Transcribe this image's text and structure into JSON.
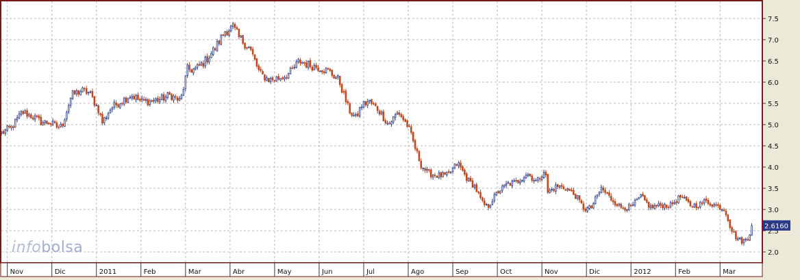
{
  "watermark": {
    "part1": "info",
    "part2": "bolsa"
  },
  "last_price_label": "2.6160",
  "colors": {
    "up": "#2b3f8c",
    "down": "#c1461b",
    "border": "#7a1818",
    "grid": "#b9b9b9",
    "tag_bg": "#2a3a86"
  },
  "chart_data": {
    "type": "candlestick",
    "title": "",
    "xlabel": "",
    "ylabel": "",
    "ylim": [
      1.85,
      7.85
    ],
    "yticks": [
      "2.0",
      "2.5",
      "3.0",
      "3.5",
      "4.0",
      "4.5",
      "5.0",
      "5.5",
      "6.0",
      "6.5",
      "7.0",
      "7.5"
    ],
    "xticks": [
      {
        "label": "Nov",
        "week": 0
      },
      {
        "label": "Dic",
        "week": 4.5
      },
      {
        "label": "2011",
        "week": 9
      },
      {
        "label": "Feb",
        "week": 13.5
      },
      {
        "label": "Mar",
        "week": 18
      },
      {
        "label": "Abr",
        "week": 22.5
      },
      {
        "label": "May",
        "week": 27
      },
      {
        "label": "Jun",
        "week": 31.5
      },
      {
        "label": "Jul",
        "week": 36
      },
      {
        "label": "Ago",
        "week": 40.5
      },
      {
        "label": "Sep",
        "week": 45
      },
      {
        "label": "Oct",
        "week": 49.5
      },
      {
        "label": "Nov",
        "week": 54
      },
      {
        "label": "Dic",
        "week": 58.5
      },
      {
        "label": "2012",
        "week": 63
      },
      {
        "label": "Feb",
        "week": 67.5
      },
      {
        "label": "Mar",
        "week": 72
      }
    ],
    "grid": true,
    "close_path": [
      [
        -0.6,
        4.8
      ],
      [
        0.5,
        4.95
      ],
      [
        1.5,
        5.3
      ],
      [
        2.5,
        5.2
      ],
      [
        3.5,
        5.05
      ],
      [
        4.3,
        5.05
      ],
      [
        5,
        4.95
      ],
      [
        5.5,
        4.95
      ],
      [
        6.5,
        5.7
      ],
      [
        7.5,
        5.8
      ],
      [
        8.3,
        5.75
      ],
      [
        9.2,
        5.35
      ],
      [
        9.6,
        5.05
      ],
      [
        10.5,
        5.4
      ],
      [
        11.5,
        5.55
      ],
      [
        12.5,
        5.7
      ],
      [
        13.5,
        5.55
      ],
      [
        14.5,
        5.55
      ],
      [
        15.5,
        5.6
      ],
      [
        16.5,
        5.7
      ],
      [
        17.1,
        5.6
      ],
      [
        17.5,
        5.55
      ],
      [
        18.2,
        6.3
      ],
      [
        19,
        6.3
      ],
      [
        20,
        6.5
      ],
      [
        21,
        6.8
      ],
      [
        22,
        7.2
      ],
      [
        22.8,
        7.3
      ],
      [
        23.4,
        7.05
      ],
      [
        24.5,
        6.8
      ],
      [
        25.5,
        6.2
      ],
      [
        26.5,
        6.05
      ],
      [
        27.5,
        6.1
      ],
      [
        28.5,
        6.2
      ],
      [
        29.5,
        6.5
      ],
      [
        30.5,
        6.4
      ],
      [
        31.5,
        6.35
      ],
      [
        32.5,
        6.25
      ],
      [
        33.5,
        6.05
      ],
      [
        34.5,
        5.35
      ],
      [
        35.2,
        5.15
      ],
      [
        35.8,
        5.45
      ],
      [
        36.5,
        5.55
      ],
      [
        37.5,
        5.35
      ],
      [
        38.5,
        5.0
      ],
      [
        39.5,
        5.3
      ],
      [
        40.5,
        4.95
      ],
      [
        41.2,
        4.45
      ],
      [
        41.8,
        4.05
      ],
      [
        42.5,
        3.85
      ],
      [
        43.5,
        3.8
      ],
      [
        44.5,
        3.8
      ],
      [
        45.5,
        4.1
      ],
      [
        46.5,
        3.7
      ],
      [
        47.2,
        3.55
      ],
      [
        48,
        3.15
      ],
      [
        48.5,
        3.05
      ],
      [
        49.5,
        3.4
      ],
      [
        50.5,
        3.6
      ],
      [
        51.5,
        3.65
      ],
      [
        52.5,
        3.85
      ],
      [
        53.5,
        3.65
      ],
      [
        54.3,
        3.95
      ],
      [
        54.6,
        3.4
      ],
      [
        55.5,
        3.55
      ],
      [
        56.5,
        3.5
      ],
      [
        57.5,
        3.3
      ],
      [
        58.3,
        3.0
      ],
      [
        59,
        3.05
      ],
      [
        60,
        3.5
      ],
      [
        61,
        3.25
      ],
      [
        62,
        3.05
      ],
      [
        63,
        3.05
      ],
      [
        64,
        3.3
      ],
      [
        65,
        3.05
      ],
      [
        66,
        3.1
      ],
      [
        67,
        3.1
      ],
      [
        68,
        3.3
      ],
      [
        69,
        3.1
      ],
      [
        69.8,
        3.1
      ],
      [
        70.5,
        3.2
      ],
      [
        71.5,
        3.1
      ],
      [
        72.5,
        3.0
      ],
      [
        73.1,
        2.55
      ],
      [
        73.6,
        2.35
      ],
      [
        74.2,
        2.25
      ],
      [
        74.8,
        2.3
      ],
      [
        75.2,
        2.62
      ]
    ],
    "last_value": 2.616
  }
}
